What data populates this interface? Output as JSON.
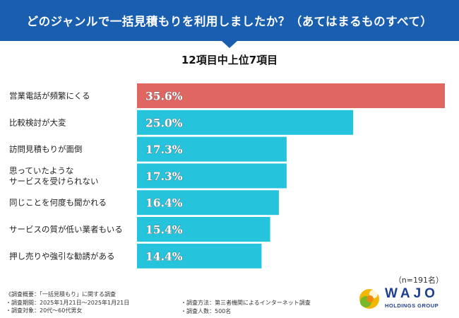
{
  "header": {
    "title": "どのジャンルで一括見積もりを利用しましたか？（あてはまるものすべて）",
    "subtitle": "12項目中上位7項目"
  },
  "chart_data": {
    "type": "bar",
    "orientation": "horizontal",
    "title": "どのジャンルで一括見積もりを利用しましたか？（あてはまるものすべて）",
    "subtitle": "12項目中上位7項目",
    "categories": [
      "営業電話が頻繁にくる",
      "比較検討が大変",
      "訪問見積もりが面倒",
      "思っていたような\nサービスを受けられない",
      "同じことを何度も聞かれる",
      "サービスの質が低い業者もいる",
      "押し売りや強引な勧誘がある"
    ],
    "values": [
      35.6,
      25.0,
      17.3,
      17.3,
      16.4,
      15.4,
      14.4
    ],
    "value_labels": [
      "35.6%",
      "25.0%",
      "17.3%",
      "17.3%",
      "16.4%",
      "15.4%",
      "14.4%"
    ],
    "unit": "%",
    "xlim": [
      0,
      35.6
    ],
    "highlight_color": "#e06662",
    "bar_color": "#25c3dc"
  },
  "sample": "（n=191名）",
  "footer": {
    "overview": "《調査概要：「一括見積もり」に関する調査",
    "period": "・調査期間：2025年1月21日～2025年1月21日",
    "target": "・調査対象：20代～60代男女",
    "method": "・調査方法：第三者機関によるインターネット調査",
    "count": "・調査人数：500名"
  },
  "logo": {
    "name": "WAJO",
    "sub": "HOLDINGS GROUP"
  }
}
